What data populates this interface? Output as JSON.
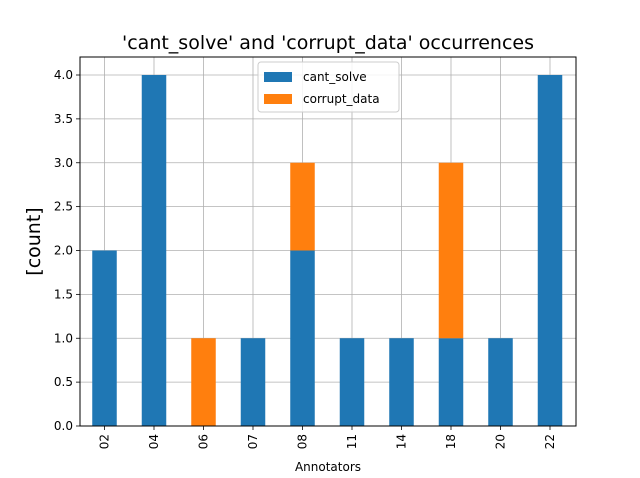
{
  "chart_data": {
    "type": "bar",
    "stacked": true,
    "title": "'cant_solve' and 'corrupt_data' occurrences",
    "xlabel": "Annotators",
    "ylabel": "[count]",
    "categories": [
      "02",
      "04",
      "06",
      "07",
      "08",
      "11",
      "14",
      "18",
      "20",
      "22"
    ],
    "series": [
      {
        "name": "cant_solve",
        "color": "#1f77b4",
        "values": [
          2,
          4,
          0,
          1,
          2,
          1,
          1,
          1,
          1,
          4
        ]
      },
      {
        "name": "corrupt_data",
        "color": "#ff7f0e",
        "values": [
          0,
          0,
          1,
          0,
          1,
          0,
          0,
          2,
          0,
          0
        ]
      }
    ],
    "ylim": [
      0,
      4.0
    ],
    "yticks": [
      "0.0",
      "0.5",
      "1.0",
      "1.5",
      "2.0",
      "2.5",
      "3.0",
      "3.5",
      "4.0"
    ],
    "grid": true,
    "legend_position": "top-center"
  }
}
